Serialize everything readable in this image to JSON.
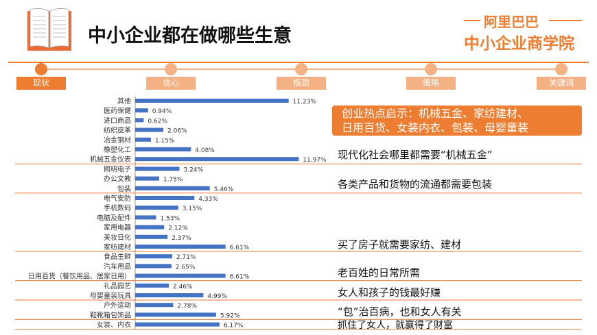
{
  "header": {
    "title": "中小企业都在做哪些生意",
    "brand_line1": "阿里巴巴",
    "brand_line2": "中小企业商学院",
    "book_icon": "open-book-icon"
  },
  "progress_steps": [
    {
      "label": "现状",
      "active": true
    },
    {
      "label": "信心",
      "active": false
    },
    {
      "label": "瓶颈",
      "active": false
    },
    {
      "label": "策略",
      "active": false
    },
    {
      "label": "关键词",
      "active": false
    }
  ],
  "colors": {
    "accent": "#ed7d31",
    "bar": "#4472c4",
    "step_inactive": "#f4b183"
  },
  "callout": {
    "line1": "创业热点启示：机械五金、家纺建材、",
    "line2": "日用百货、女装内衣、包装、母婴童装"
  },
  "annotations": [
    "现代化社会哪里都需要“机械五金”",
    "各类产品和货物的流通都需要包装",
    "买了房子就需要家纺、建材",
    "老百姓的日常所需",
    "女人和孩子的钱最好赚",
    "“包”治百病，也和女人有关",
    "抓住了女人，就赢得了财富"
  ],
  "chart_data": {
    "type": "bar",
    "orientation": "horizontal",
    "categories": [
      "其他",
      "医药保健",
      "进口商品",
      "纺织皮革",
      "冶金钢材",
      "橡塑化工",
      "机械五金仪表",
      "照明电子",
      "办公文教",
      "包装",
      "电气安防",
      "手机数码",
      "电脑及配件",
      "家用电器",
      "美妆日化",
      "家纺建材",
      "食品生鲜",
      "汽车用品",
      "日用百货（餐饮用品、居家日用）",
      "礼品园艺",
      "母婴童装玩具",
      "户外运动",
      "鞋靴箱包饰品",
      "女装、内衣"
    ],
    "values": [
      11.23,
      0.94,
      0.62,
      2.06,
      1.15,
      4.08,
      11.97,
      3.24,
      1.75,
      5.46,
      4.33,
      3.15,
      1.53,
      2.12,
      2.37,
      6.61,
      2.71,
      2.65,
      6.61,
      2.46,
      4.99,
      2.78,
      5.92,
      6.17
    ],
    "value_labels": [
      "11.23%",
      "0.94%",
      "0.62%",
      "2.06%",
      "1.15%",
      "4.08%",
      "11.97%",
      "3.24%",
      "1.75%",
      "5.46%",
      "4.33%",
      "3.15%",
      "1.53%",
      "2.12%",
      "2.37%",
      "6.61%",
      "2.71%",
      "2.65%",
      "6.61%",
      "2.46%",
      "4.99%",
      "2.78%",
      "5.92%",
      "6.17%"
    ],
    "group_ends": [
      6,
      9,
      15,
      18,
      20,
      22,
      23
    ],
    "xlim": [
      0,
      12
    ],
    "grid": false
  }
}
